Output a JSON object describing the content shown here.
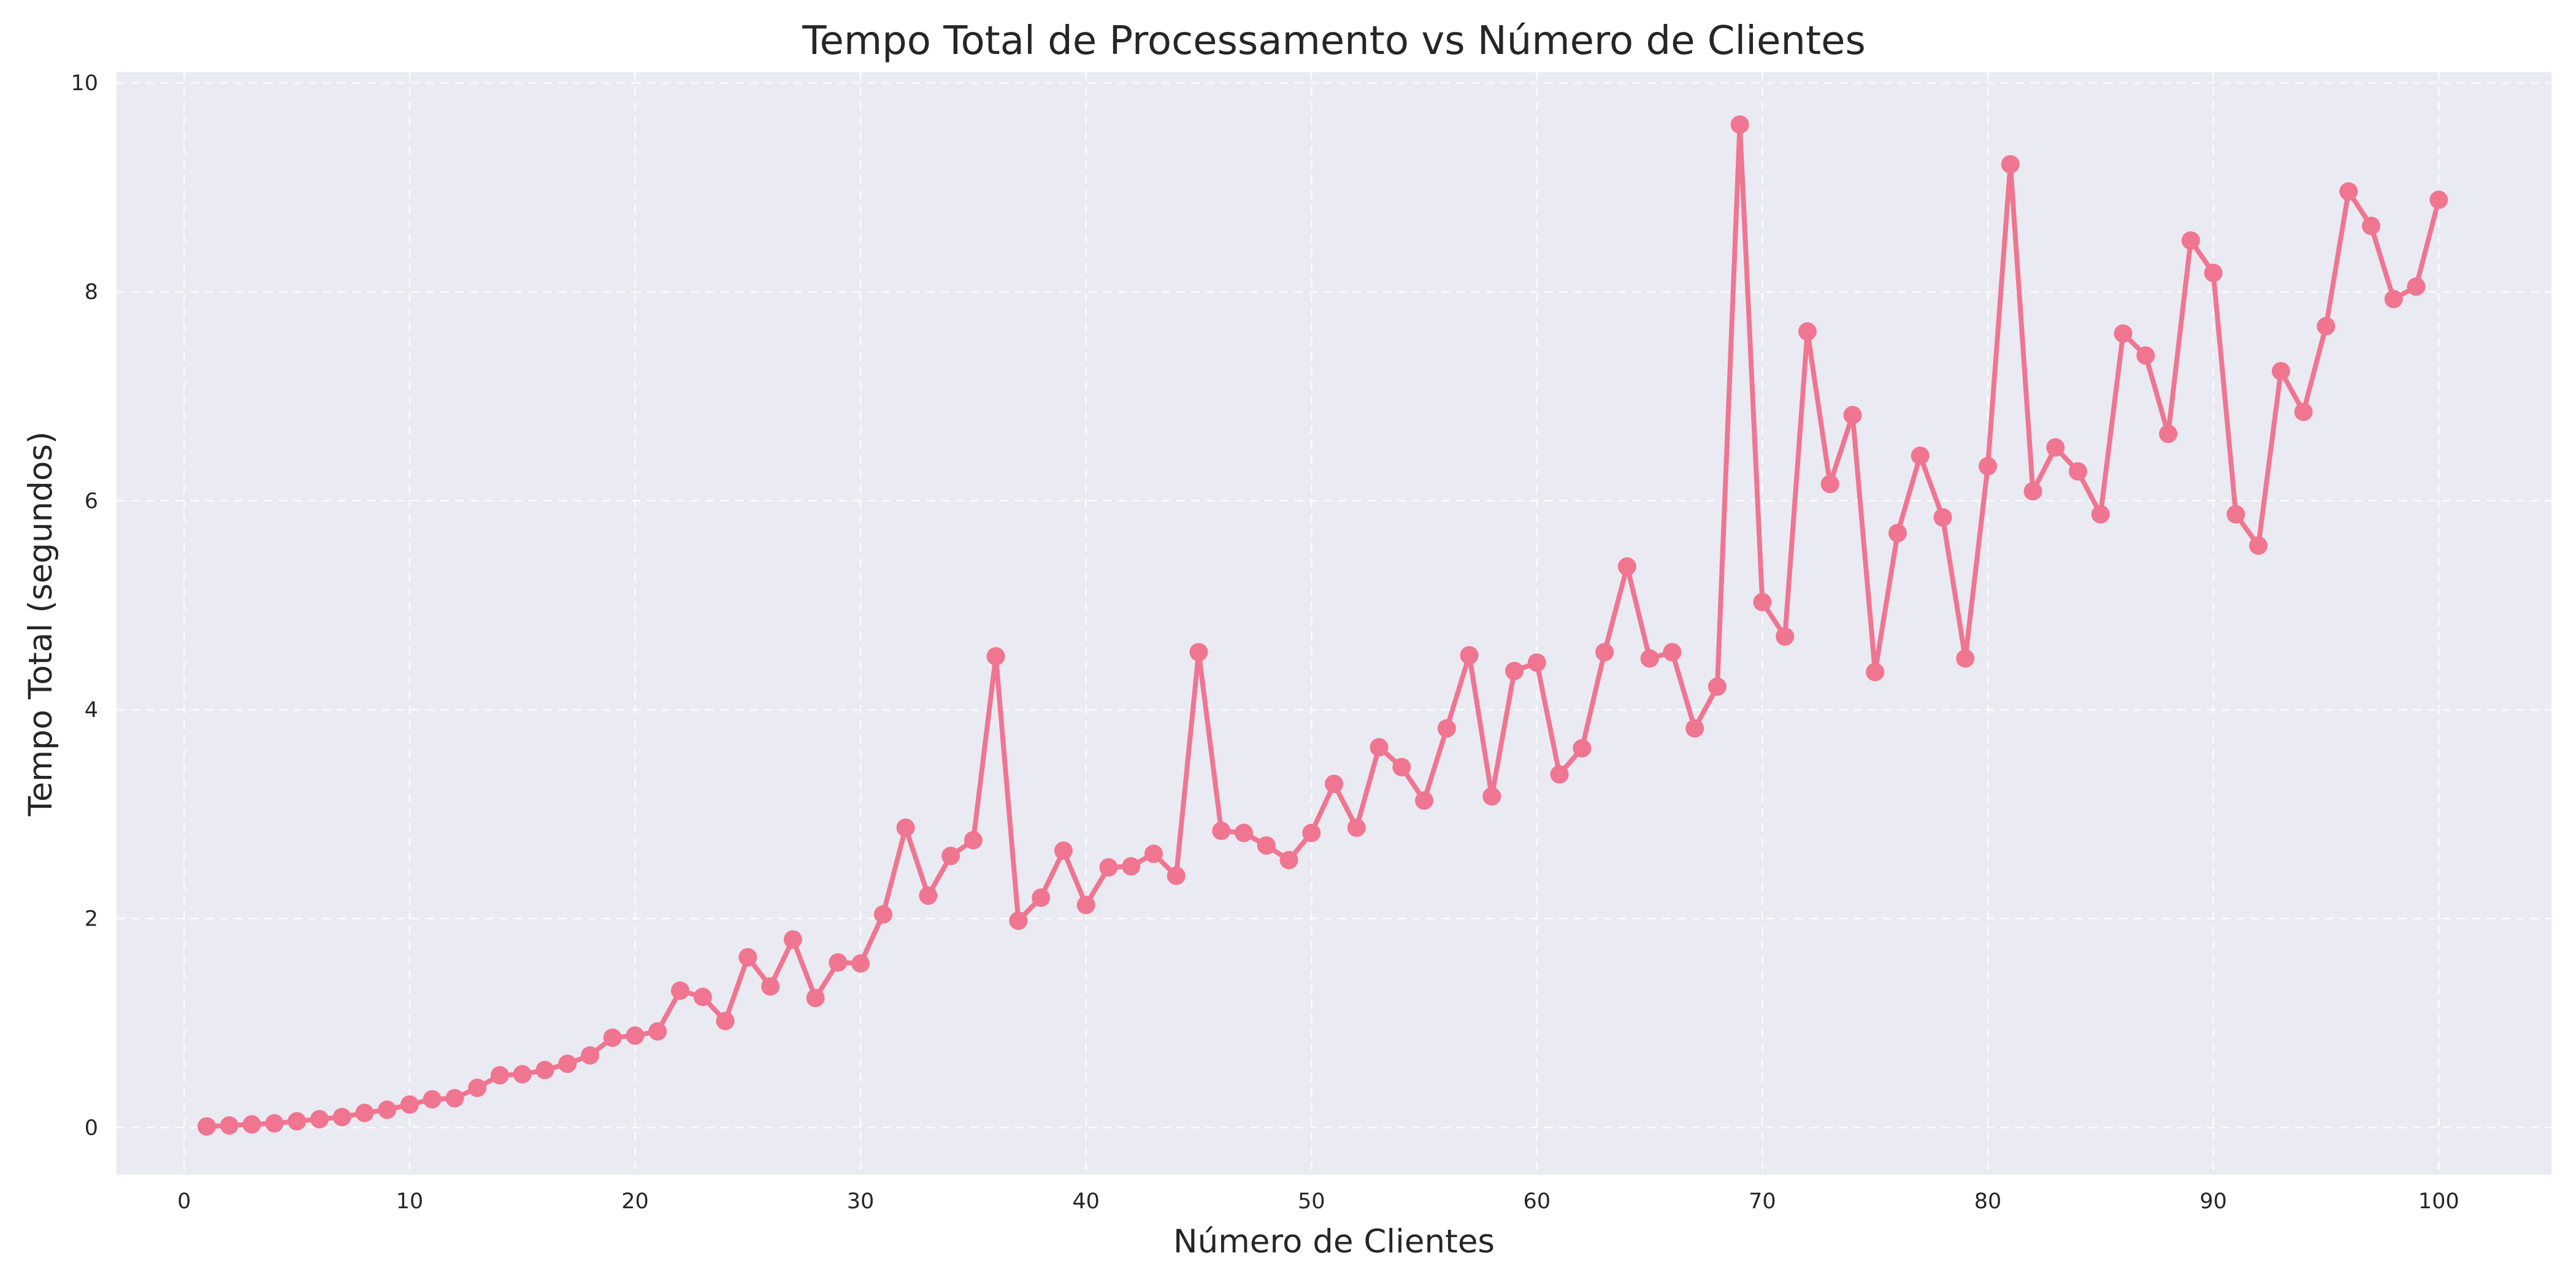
{
  "chart_data": {
    "type": "line",
    "title": "Tempo Total de Processamento vs Número de Clientes",
    "xlabel": "Número de Clientes",
    "ylabel": "Tempo Total (segundos)",
    "xlim": [
      -3,
      105
    ],
    "ylim": [
      -0.45,
      10.1
    ],
    "xticks": [
      0,
      10,
      20,
      30,
      40,
      50,
      60,
      70,
      80,
      90,
      100
    ],
    "yticks": [
      0,
      2,
      4,
      6,
      8,
      10
    ],
    "grid": true,
    "colors": {
      "series": "#F07590",
      "background": "#EAEAF2",
      "grid": "#FFFFFF"
    },
    "series": [
      {
        "x": [
          1,
          2,
          3,
          4,
          5,
          6,
          7,
          8,
          9,
          10,
          11,
          12,
          13,
          14,
          15,
          16,
          17,
          18,
          19,
          20,
          21,
          22,
          23,
          24,
          25,
          26,
          27,
          28,
          29,
          30,
          31,
          32,
          33,
          34,
          35,
          36,
          37,
          38,
          39,
          40,
          41,
          42,
          43,
          44,
          45,
          46,
          47,
          48,
          49,
          50,
          51,
          52,
          53,
          54,
          55,
          56,
          57,
          58,
          59,
          60,
          61,
          62,
          63,
          64,
          65,
          66,
          67,
          68,
          69,
          70,
          71,
          72,
          73,
          74,
          75,
          76,
          77,
          78,
          79,
          80,
          81,
          82,
          83,
          84,
          85,
          86,
          87,
          88,
          89,
          90,
          91,
          92,
          93,
          94,
          95,
          96,
          97,
          98,
          99,
          100
        ],
        "values": [
          0.01,
          0.02,
          0.03,
          0.04,
          0.06,
          0.08,
          0.1,
          0.14,
          0.17,
          0.22,
          0.27,
          0.28,
          0.38,
          0.5,
          0.51,
          0.55,
          0.61,
          0.69,
          0.86,
          0.88,
          0.92,
          1.31,
          1.25,
          1.02,
          1.63,
          1.35,
          1.8,
          1.24,
          1.58,
          1.57,
          2.04,
          2.87,
          2.22,
          2.6,
          2.75,
          4.51,
          1.98,
          2.2,
          2.65,
          2.13,
          2.49,
          2.5,
          2.62,
          2.41,
          4.55,
          2.84,
          2.82,
          2.7,
          2.56,
          2.82,
          3.29,
          2.87,
          3.64,
          3.45,
          3.13,
          3.82,
          4.52,
          3.17,
          4.37,
          4.45,
          3.38,
          3.63,
          4.55,
          5.37,
          4.49,
          4.55,
          3.82,
          4.22,
          9.6,
          5.03,
          4.7,
          7.62,
          6.16,
          6.82,
          4.36,
          5.69,
          6.43,
          5.84,
          4.49,
          6.33,
          9.22,
          6.09,
          6.51,
          6.28,
          5.87,
          7.6,
          7.39,
          6.64,
          8.49,
          8.18,
          5.87,
          5.57,
          7.24,
          6.85,
          7.67,
          8.96,
          8.63,
          7.93,
          8.05,
          8.88
        ]
      }
    ]
  }
}
